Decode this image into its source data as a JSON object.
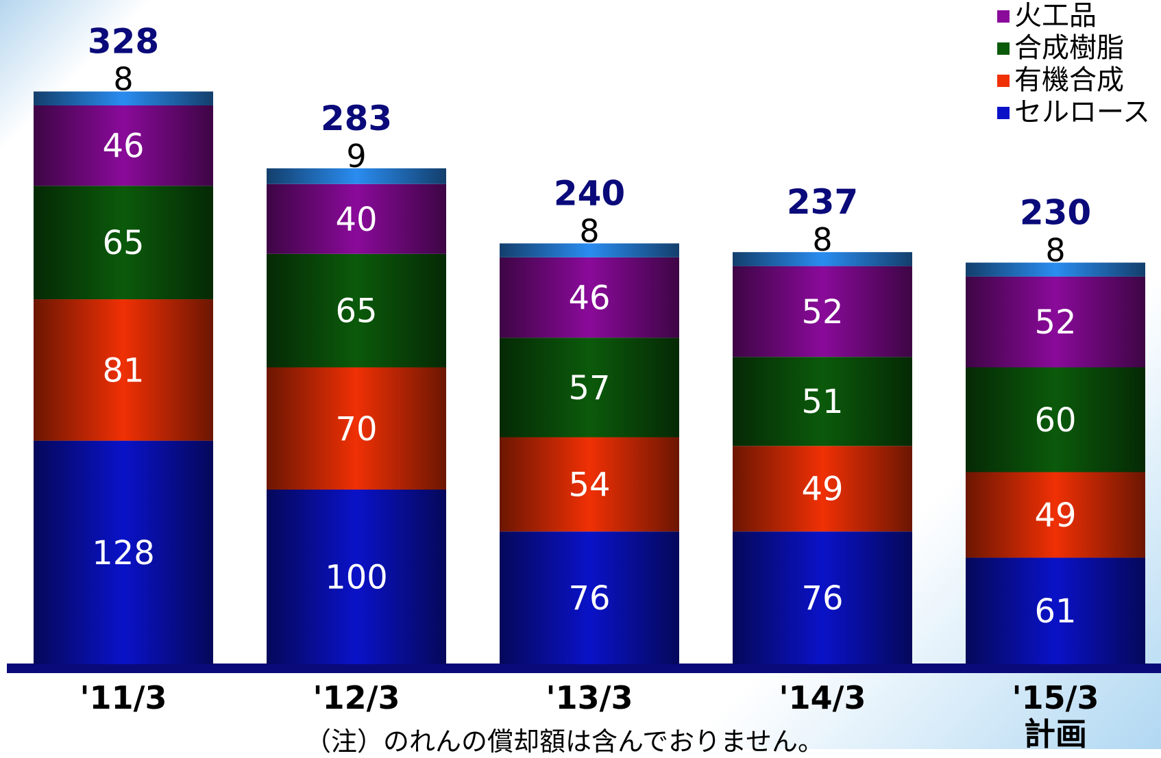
{
  "chart_data": {
    "type": "stacked-bar",
    "categories": [
      "'11/3",
      "'12/3",
      "'13/3",
      "'14/3",
      "'15/3"
    ],
    "category_sublabels": [
      "",
      "",
      "",
      "",
      "計画"
    ],
    "series": [
      {
        "name": "セルロース",
        "values": [
          128,
          100,
          76,
          76,
          61
        ],
        "color": "#0a12c8"
      },
      {
        "name": "有機合成",
        "values": [
          81,
          70,
          54,
          49,
          49
        ],
        "color": "#f03005"
      },
      {
        "name": "合成樹脂",
        "values": [
          65,
          65,
          57,
          51,
          60
        ],
        "color": "#0b5a0b"
      },
      {
        "name": "火工品",
        "values": [
          46,
          40,
          46,
          52,
          52
        ],
        "color": "#8a0a9a"
      },
      {
        "name": "",
        "values": [
          8,
          9,
          8,
          8,
          8
        ],
        "color": "#2a8cf0"
      }
    ],
    "totals": [
      328,
      283,
      240,
      237,
      230
    ],
    "legend_position": "top-right",
    "total_label_color": "#0a0a7a",
    "axis_color": "#0a0a7a"
  },
  "legend": [
    {
      "label": "火工品",
      "color": "#8a0a9a"
    },
    {
      "label": "合成樹脂",
      "color": "#0b5a0b"
    },
    {
      "label": "有機合成",
      "color": "#f03005"
    },
    {
      "label": "セルロース",
      "color": "#0a12c8"
    }
  ],
  "note": "（注）のれんの償却額は含んでおりません。"
}
